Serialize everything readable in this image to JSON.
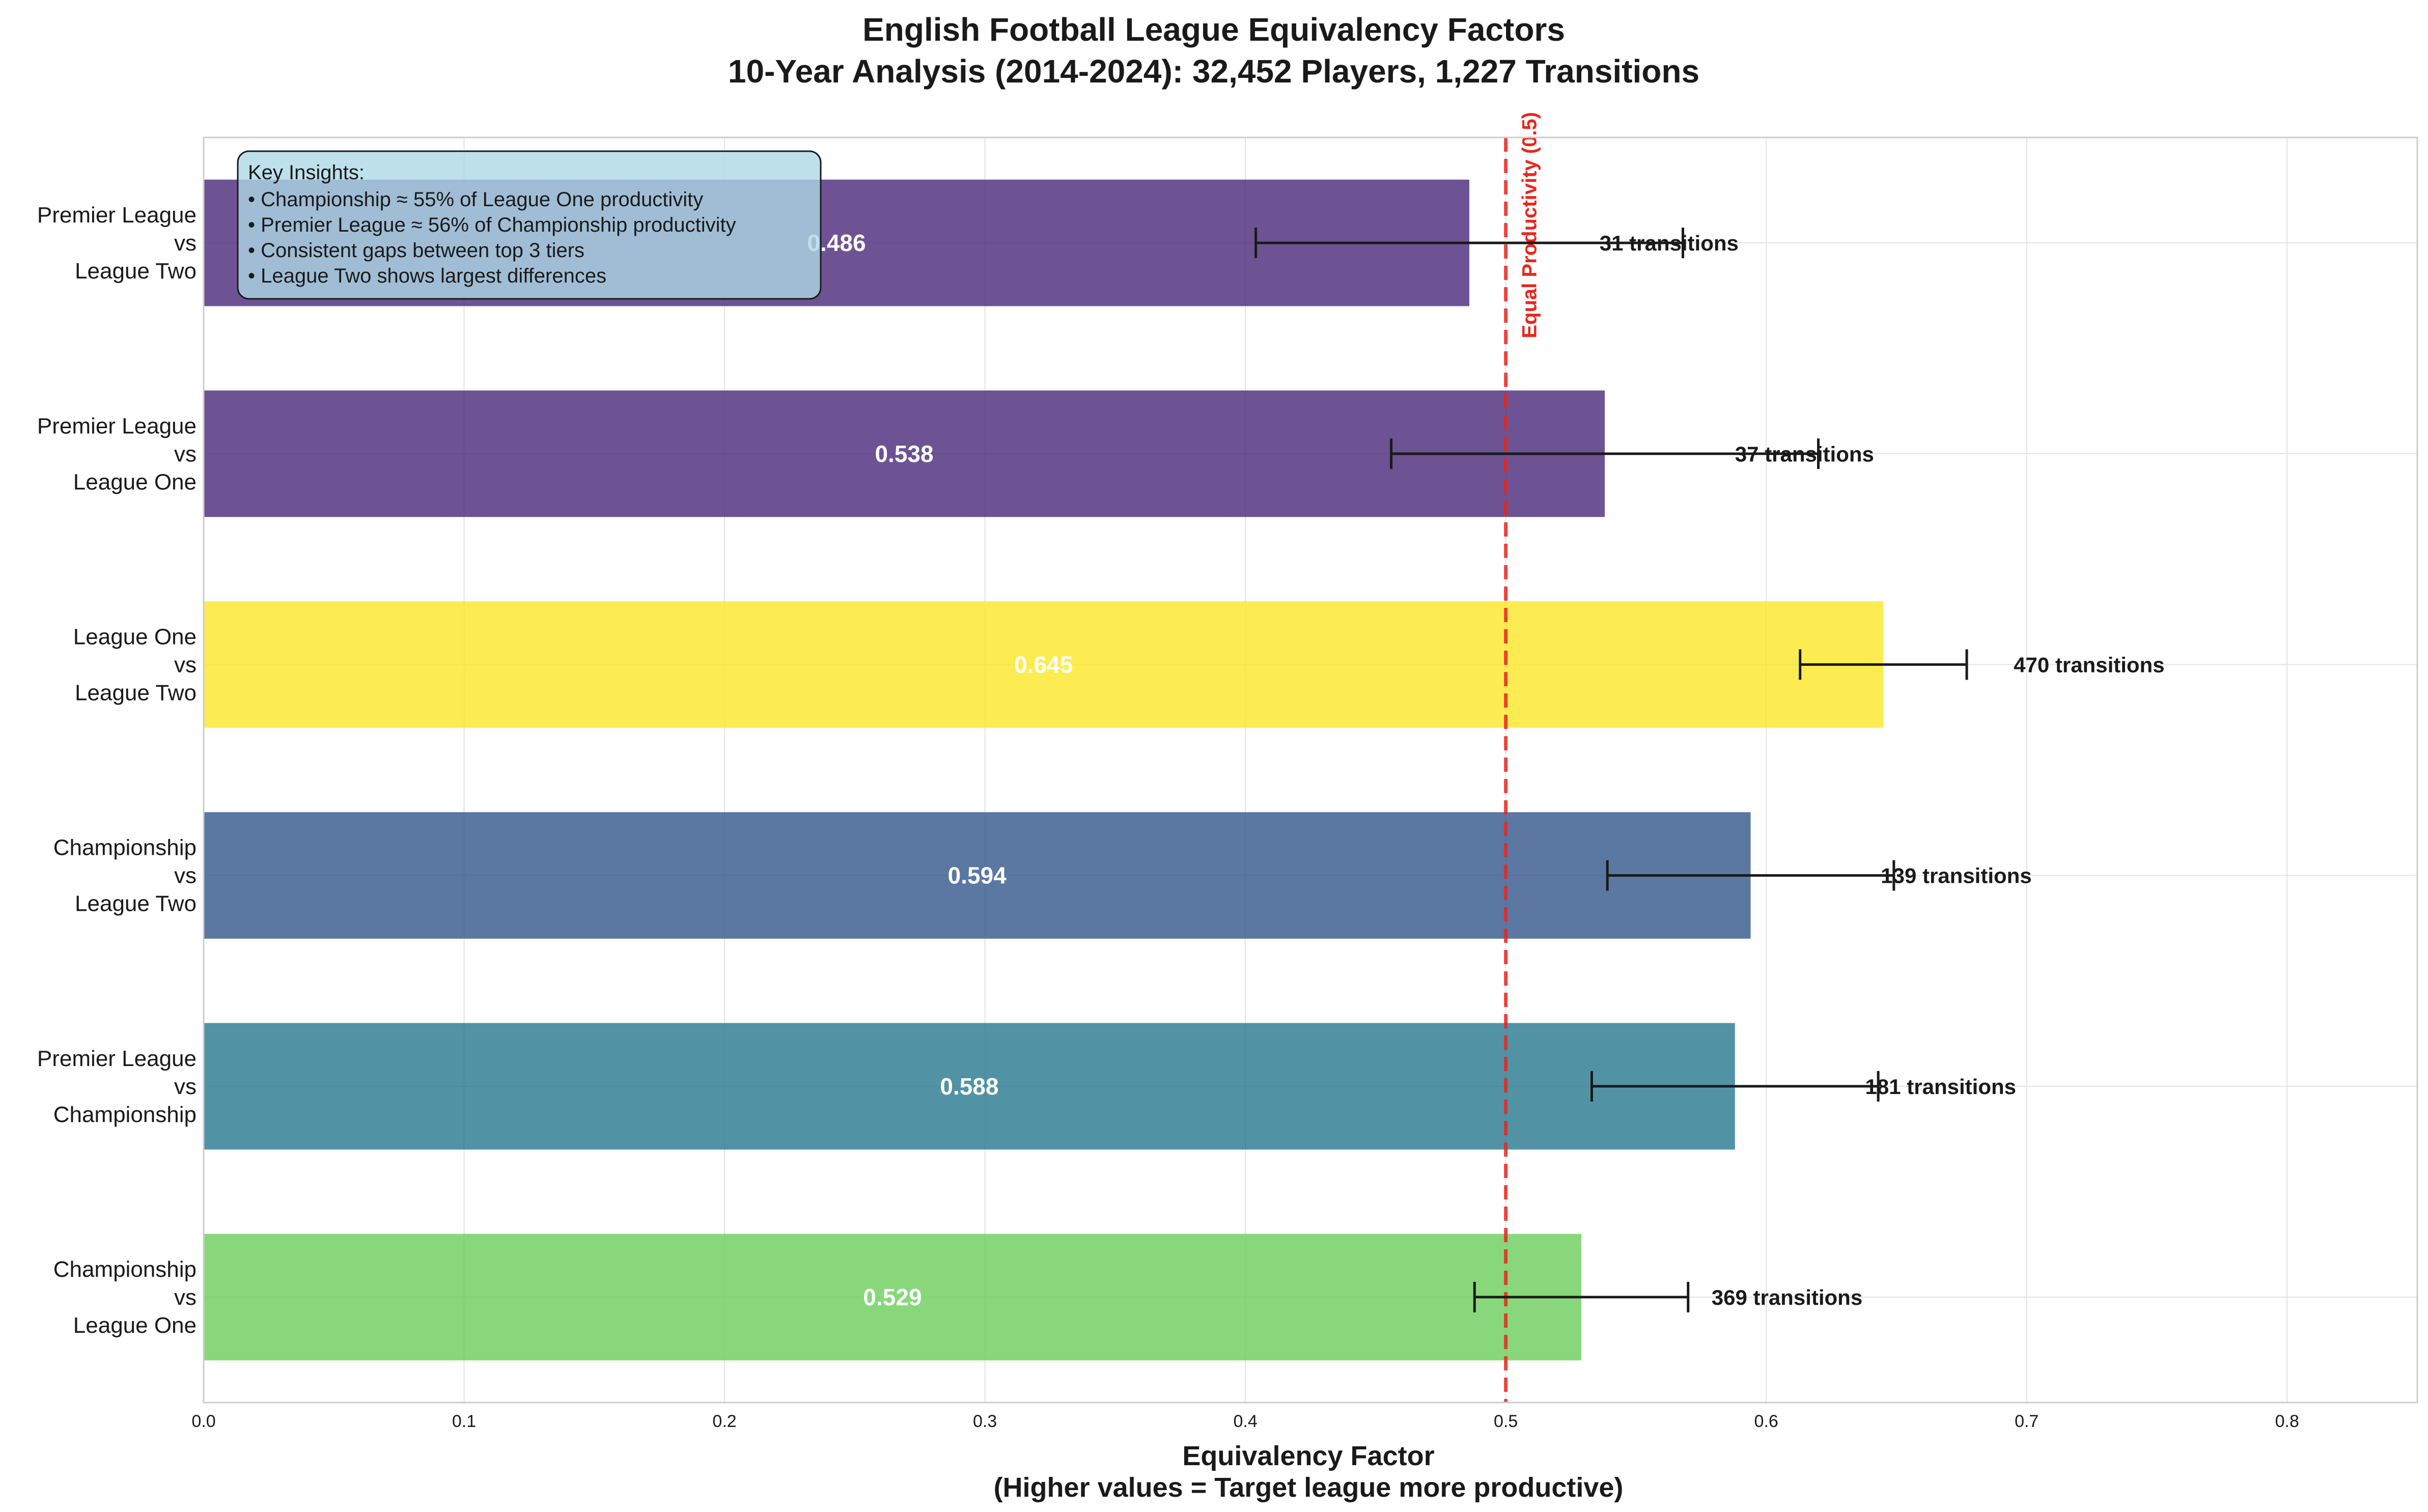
{
  "chart_data": {
    "type": "bar",
    "orientation": "horizontal",
    "title": "English Football League Equivalency Factors",
    "subtitle": "10-Year Analysis (2014-2024): 32,452 Players, 1,227 Transitions",
    "xlabel": "Equivalency Factor",
    "xlabel_note": "(Higher values = Target league more productive)",
    "xlim": [
      0,
      0.85
    ],
    "xticks": [
      "0.0",
      "0.1",
      "0.2",
      "0.3",
      "0.4",
      "0.5",
      "0.6",
      "0.7",
      "0.8"
    ],
    "grid": true,
    "bars": [
      {
        "label": [
          "Premier League",
          "vs",
          "League Two"
        ],
        "value": 0.486,
        "value_label": "0.486",
        "ci": [
          0.404,
          0.568
        ],
        "transitions": "31 transitions",
        "color": "#482878"
      },
      {
        "label": [
          "Premier League",
          "vs",
          "League One"
        ],
        "value": 0.538,
        "value_label": "0.538",
        "ci": [
          0.456,
          0.62
        ],
        "transitions": "37 transitions",
        "color": "#482878"
      },
      {
        "label": [
          "League One",
          "vs",
          "League Two"
        ],
        "value": 0.645,
        "value_label": "0.645",
        "ci": [
          0.613,
          0.677
        ],
        "transitions": "470 transitions",
        "color": "#fde725"
      },
      {
        "label": [
          "Championship",
          "vs",
          "League Two"
        ],
        "value": 0.594,
        "value_label": "0.594",
        "ci": [
          0.539,
          0.649
        ],
        "transitions": "139 transitions",
        "color": "#31568b"
      },
      {
        "label": [
          "Premier League",
          "vs",
          "Championship"
        ],
        "value": 0.588,
        "value_label": "0.588",
        "ci": [
          0.533,
          0.643
        ],
        "transitions": "181 transitions",
        "color": "#26788e"
      },
      {
        "label": [
          "Championship",
          "vs",
          "League One"
        ],
        "value": 0.529,
        "value_label": "0.529",
        "ci": [
          0.488,
          0.57
        ],
        "transitions": "369 transitions",
        "color": "#6ccd5a"
      }
    ],
    "reference_line": {
      "value": 0.5,
      "label": "Equal Productivity (0.5)",
      "color": "#e8261e"
    },
    "insights": {
      "heading": "Key Insights:",
      "lines": [
        "• Championship ≈ 55% of League One productivity",
        "• Premier League ≈ 56% of Championship productivity",
        "• Consistent gaps between top 3 tiers",
        "• League Two shows largest differences"
      ],
      "box_color": "#add8e6"
    }
  }
}
